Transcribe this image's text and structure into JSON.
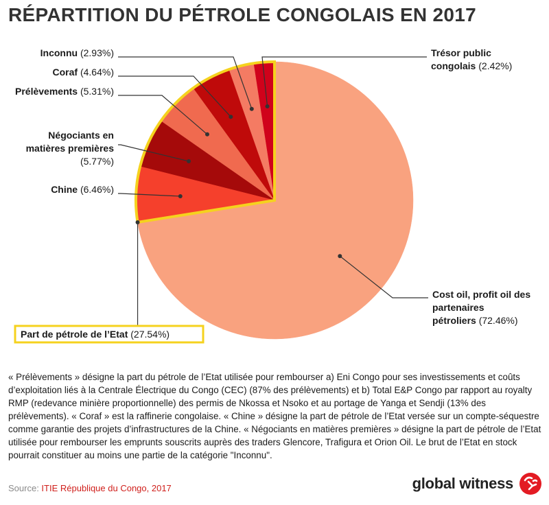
{
  "title": "RÉPARTITION DU PÉTROLE CONGOLAIS EN 2017",
  "chart_data": {
    "type": "pie",
    "title": "RÉPARTITION DU PÉTROLE CONGOLAIS EN 2017",
    "slices": [
      {
        "label": "Trésor public congolais",
        "label_lines": [
          "Trésor public",
          "congolais"
        ],
        "value": 2.42,
        "value_text": "(2.42%)",
        "color": "#d0021b",
        "state_share": true
      },
      {
        "label": "Inconnu",
        "label_lines": [
          "Inconnu"
        ],
        "value": 2.93,
        "value_text": "(2.93%)",
        "color": "#f47b63",
        "state_share": true
      },
      {
        "label": "Coraf",
        "label_lines": [
          "Coraf"
        ],
        "value": 4.64,
        "value_text": "(4.64%)",
        "color": "#bf0a0a",
        "state_share": true
      },
      {
        "label": "Prélèvements",
        "label_lines": [
          "Prélèvements"
        ],
        "value": 5.31,
        "value_text": "(5.31%)",
        "color": "#f06a4f",
        "state_share": true
      },
      {
        "label": "Négociants en matières premières",
        "label_lines": [
          "Négociants en",
          "matières premières"
        ],
        "value": 5.77,
        "value_text": "(5.77%)",
        "color": "#a50a0a",
        "state_share": true
      },
      {
        "label": "Chine",
        "label_lines": [
          "Chine"
        ],
        "value": 6.46,
        "value_text": "(6.46%)",
        "color": "#f5402c",
        "state_share": true
      },
      {
        "label": "Cost oil, profit oil des partenaires pétroliers",
        "label_lines": [
          "Cost oil, profit oil des",
          "partenaires",
          "pétroliers"
        ],
        "value": 72.46,
        "value_text": "(72.46%)",
        "color": "#f9a27f",
        "state_share": false
      }
    ],
    "group": {
      "label": "Part de pétrole de l’Etat",
      "value": 27.54,
      "value_text": "(27.54%)",
      "highlight_color": "#f5d21e"
    }
  },
  "footnote": "« Prélèvements » désigne la part du pétrole de l’Etat utilisée pour rembourser a) Eni Congo pour ses investissements et coûts d’exploitation liés à la Centrale Électrique du Congo (CEC) (87% des prélèvements) et b) Total E&P Congo par rapport au royalty RMP (redevance minière proportionnelle) des permis de Nkossa et Nsoko et au portage de Yanga et Sendji (13% des prélèvements). « Coraf » est la raffinerie congolaise. « Chine » désigne la part de pétrole de l’Etat versée sur un compte-séquestre comme garantie des projets d’infrastructures de la Chine. « Négociants en matières premières » désigne la part de pétrole de l’Etat utilisée pour rembourser les emprunts souscrits auprès des traders Glencore, Trafigura et Orion Oil. Le brut de l’Etat en stock pourrait constituer au moins une partie de la catégorie \"Inconnu\".",
  "source": {
    "prefix": "Source: ",
    "text": "ITIE République du Congo, 2017"
  },
  "brand": {
    "name": "global witness",
    "logo_icon": "global-witness-logo-icon"
  }
}
